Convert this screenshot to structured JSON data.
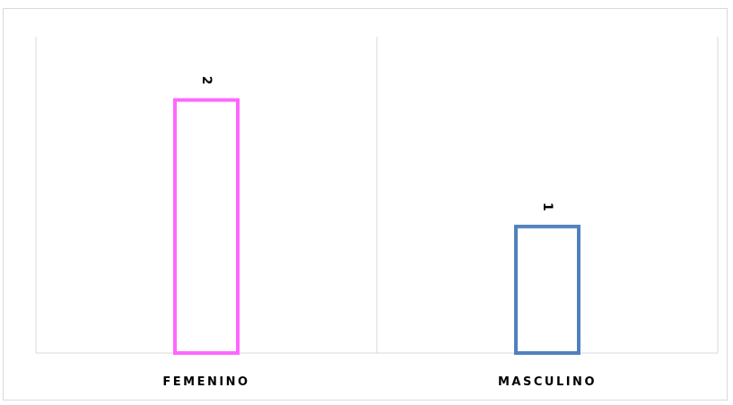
{
  "chart_data": {
    "type": "bar",
    "categories": [
      "FEMENINO",
      "MASCULINO"
    ],
    "values": [
      2,
      1
    ],
    "data_labels": [
      "2",
      "1"
    ],
    "colors": [
      "#ff66ff",
      "#4f81bd"
    ],
    "bar_style": "outline",
    "data_label_rotation": "vertical",
    "ylim": [
      0,
      2.5
    ],
    "grid": "vertical category separators",
    "legend": "none"
  }
}
